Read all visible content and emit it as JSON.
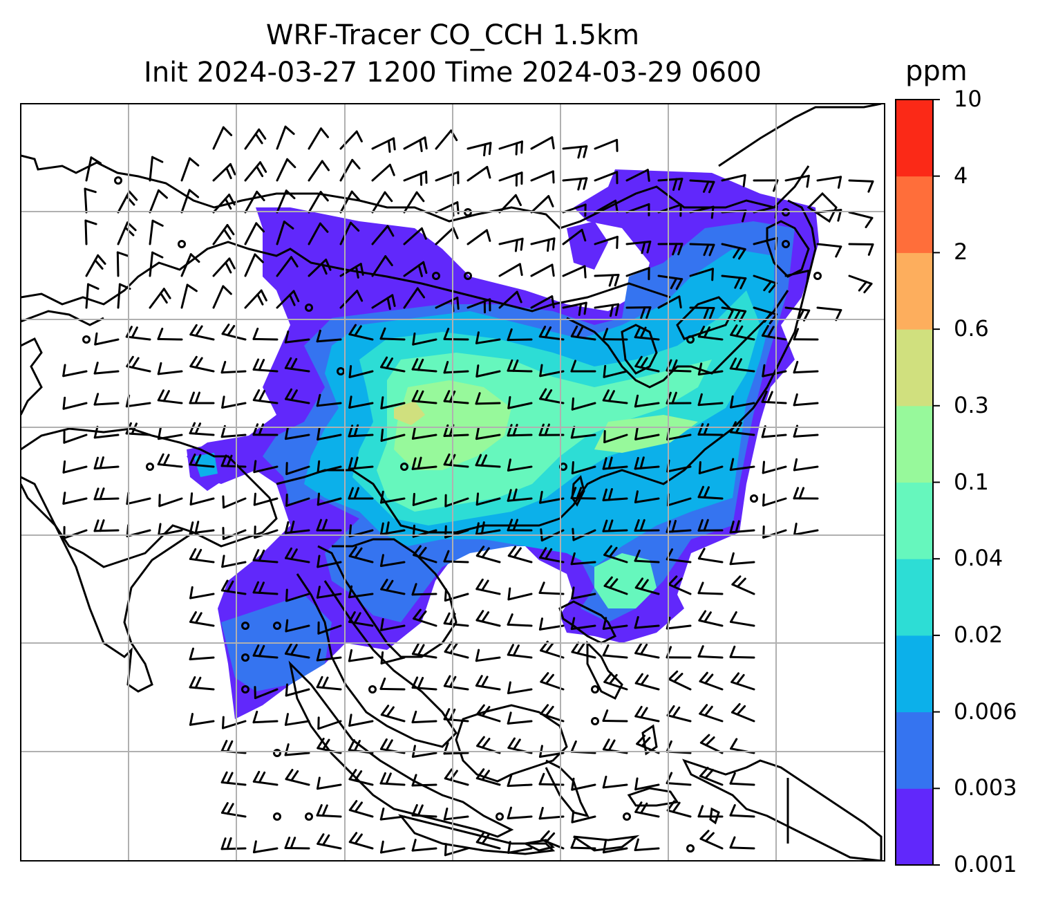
{
  "title": {
    "line1": "WRF-Tracer CO_CCH 1.5km",
    "line2": "Init 2024-03-27 1200 Time 2024-03-29 0600"
  },
  "colorbar": {
    "unit": "ppm",
    "levels": [
      "0.001",
      "0.003",
      "0.006",
      "0.02",
      "0.04",
      "0.1",
      "0.3",
      "0.6",
      "2",
      "4",
      "10"
    ],
    "colors": [
      "#6128fb",
      "#3574f0",
      "#0cb0ea",
      "#2dddd5",
      "#66f7bd",
      "#97f99b",
      "#d0e07e",
      "#fdae5d",
      "#ff6e3a",
      "#fb2917"
    ]
  },
  "map": {
    "gridlines": true,
    "features": [
      "coastlines",
      "wind-barbs",
      "tracer-concentration"
    ]
  }
}
